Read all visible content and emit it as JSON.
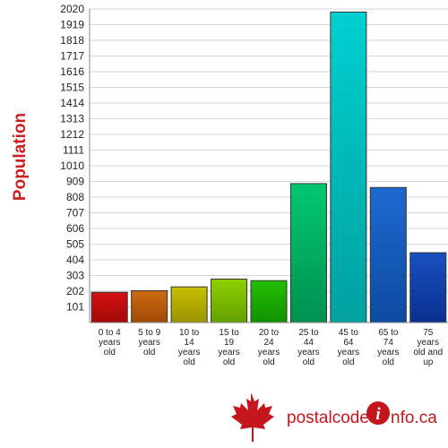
{
  "chart_data": {
    "type": "bar",
    "ylabel": "Population",
    "xlabel": "",
    "title": "",
    "categories": [
      [
        "0 to 4",
        "years",
        "old"
      ],
      [
        "5 to 9",
        "years",
        "old"
      ],
      [
        "10 to",
        "14",
        "years",
        "old"
      ],
      [
        "15 to",
        "19",
        "years",
        "old"
      ],
      [
        "20 to",
        "24",
        "years",
        "old"
      ],
      [
        "25 to",
        "44",
        "years",
        "old"
      ],
      [
        "45 to",
        "64",
        "years",
        "old"
      ],
      [
        "65 to",
        "74",
        "years",
        "old"
      ],
      [
        "75",
        "years",
        "old and",
        "up"
      ]
    ],
    "values": [
      195,
      205,
      230,
      280,
      270,
      895,
      2000,
      870,
      450
    ],
    "yticks": [
      101,
      202,
      303,
      404,
      505,
      606,
      707,
      808,
      909,
      1010,
      1111,
      1212,
      1313,
      1414,
      1515,
      1616,
      1717,
      1818,
      1919,
      2020
    ],
    "ylim": [
      0,
      2020
    ],
    "grid": true,
    "colors": [
      [
        "#d41010",
        "#a30808"
      ],
      [
        "#cc6a10",
        "#a04a06"
      ],
      [
        "#c8c000",
        "#9a9400"
      ],
      [
        "#8fd000",
        "#62a000"
      ],
      [
        "#22c000",
        "#129000"
      ],
      [
        "#00c870",
        "#009050"
      ],
      [
        "#00d0d0",
        "#00a0a0"
      ],
      [
        "#1c6ad0",
        "#0d4aa0"
      ],
      [
        "#1850c0",
        "#0a3090"
      ]
    ]
  },
  "logo": {
    "part1": "postal",
    "part2": "code",
    "part3": "nfo.ca",
    "icon_letter": "i",
    "leaf": "maple-leaf-icon"
  }
}
